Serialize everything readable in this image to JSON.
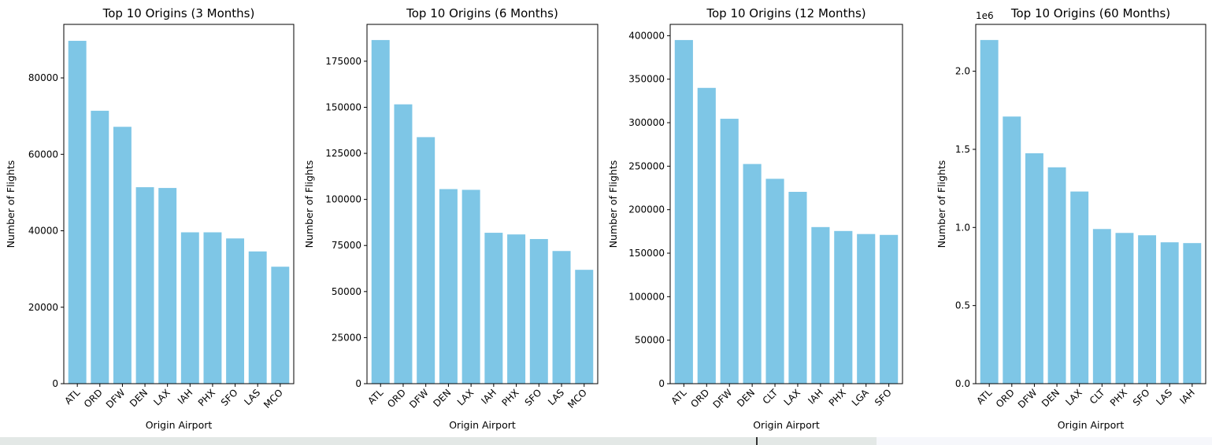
{
  "colors": {
    "bar": "#7ec6e6",
    "axis": "#000000"
  },
  "chart_data": [
    {
      "type": "bar",
      "title": "Top 10 Origins (3 Months)",
      "xlabel": "Origin Airport",
      "ylabel": "Number of Flights",
      "categories": [
        "ATL",
        "ORD",
        "DFW",
        "DEN",
        "LAX",
        "IAH",
        "PHX",
        "SFO",
        "LAS",
        "MCO"
      ],
      "values": [
        89700,
        71400,
        67200,
        51400,
        51200,
        39600,
        39600,
        38000,
        34600,
        30600
      ],
      "ylim": [
        0,
        94000
      ],
      "yticks": [
        0,
        20000,
        40000,
        60000,
        80000
      ],
      "ytick_labels": [
        "0",
        "20000",
        "40000",
        "60000",
        "80000"
      ],
      "scale_label": ""
    },
    {
      "type": "bar",
      "title": "Top 10 Origins (6 Months)",
      "xlabel": "Origin Airport",
      "ylabel": "Number of Flights",
      "categories": [
        "ATL",
        "ORD",
        "DFW",
        "DEN",
        "LAX",
        "IAH",
        "PHX",
        "SFO",
        "LAS",
        "MCO"
      ],
      "values": [
        186500,
        151600,
        133800,
        105600,
        105200,
        81900,
        81000,
        78500,
        72000,
        61800
      ],
      "ylim": [
        0,
        195000
      ],
      "yticks": [
        0,
        25000,
        50000,
        75000,
        100000,
        125000,
        150000,
        175000
      ],
      "ytick_labels": [
        "0",
        "25000",
        "50000",
        "75000",
        "100000",
        "125000",
        "150000",
        "175000"
      ],
      "scale_label": ""
    },
    {
      "type": "bar",
      "title": "Top 10 Origins (12 Months)",
      "xlabel": "Origin Airport",
      "ylabel": "Number of Flights",
      "categories": [
        "ATL",
        "ORD",
        "DFW",
        "DEN",
        "CLT",
        "LAX",
        "IAH",
        "PHX",
        "LGA",
        "SFO"
      ],
      "values": [
        395000,
        340000,
        304500,
        252500,
        235500,
        220500,
        180000,
        175500,
        172000,
        171000
      ],
      "ylim": [
        0,
        413000
      ],
      "yticks": [
        0,
        50000,
        100000,
        150000,
        200000,
        250000,
        300000,
        350000,
        400000
      ],
      "ytick_labels": [
        "0",
        "50000",
        "100000",
        "150000",
        "200000",
        "250000",
        "300000",
        "350000",
        "400000"
      ],
      "scale_label": ""
    },
    {
      "type": "bar",
      "title": "Top 10 Origins (60 Months)",
      "xlabel": "Origin Airport",
      "ylabel": "Number of Flights",
      "categories": [
        "ATL",
        "ORD",
        "DFW",
        "DEN",
        "LAX",
        "CLT",
        "PHX",
        "SFO",
        "LAS",
        "IAH"
      ],
      "values": [
        2.2,
        1.71,
        1.475,
        1.385,
        1.23,
        0.99,
        0.965,
        0.95,
        0.905,
        0.9
      ],
      "ylim": [
        0,
        2.3
      ],
      "yticks": [
        0,
        0.5,
        1.0,
        1.5,
        2.0
      ],
      "ytick_labels": [
        "0.0",
        "0.5",
        "1.0",
        "1.5",
        "2.0"
      ],
      "scale_label": "1e6"
    }
  ]
}
